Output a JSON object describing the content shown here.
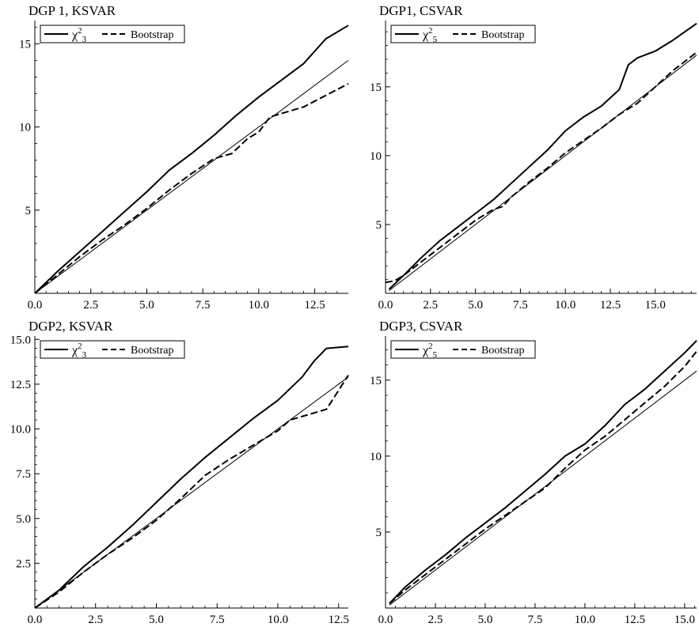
{
  "chart_data": [
    {
      "type": "line",
      "title": "DGP 1, KSVAR",
      "xlim": [
        0,
        14
      ],
      "ylim": [
        0,
        16.3
      ],
      "xticks": [
        "0.0",
        "2.5",
        "5.0",
        "7.5",
        "10.0",
        "12.5"
      ],
      "xtick_values": [
        0,
        2.5,
        5,
        7.5,
        10,
        12.5
      ],
      "yticks": [
        "5",
        "10",
        "15"
      ],
      "ytick_values": [
        5,
        10,
        15
      ],
      "legend": {
        "chi_base": "χ",
        "chi_sup": "2",
        "chi_sub": "3",
        "bootstrap": "Bootstrap",
        "position": "top-left"
      },
      "series": [
        {
          "key": "chi2",
          "style": "solid",
          "x": [
            0,
            1,
            2,
            3,
            4,
            5,
            6,
            7,
            8,
            9,
            10,
            11,
            12,
            13,
            14
          ],
          "y": [
            0,
            1.3,
            2.5,
            3.7,
            4.9,
            6.1,
            7.4,
            8.4,
            9.5,
            10.7,
            11.8,
            12.8,
            13.8,
            15.3,
            16.1
          ]
        },
        {
          "key": "bootstrap",
          "style": "dashed",
          "x": [
            0,
            1,
            2,
            3,
            4,
            5,
            6,
            7,
            8,
            8.8,
            9.5,
            10,
            10.5,
            11,
            12,
            13,
            14
          ],
          "y": [
            0,
            1.1,
            2.2,
            3.2,
            4.1,
            5.1,
            6.2,
            7.2,
            8.1,
            8.4,
            9.3,
            9.7,
            10.6,
            10.8,
            11.2,
            11.9,
            12.6
          ]
        },
        {
          "key": "reference",
          "style": "thin",
          "x": [
            0,
            14
          ],
          "y": [
            0,
            14
          ]
        }
      ]
    },
    {
      "type": "line",
      "title": "DGP1, CSVAR",
      "xlim": [
        0,
        17.3
      ],
      "ylim": [
        0,
        19.7
      ],
      "xticks": [
        "0.0",
        "2.5",
        "5.0",
        "7.5",
        "10.0",
        "12.5",
        "15.0"
      ],
      "xtick_values": [
        0,
        2.5,
        5,
        7.5,
        10,
        12.5,
        15
      ],
      "yticks": [
        "5",
        "10",
        "15"
      ],
      "ytick_values": [
        5,
        10,
        15
      ],
      "legend": {
        "chi_base": "χ",
        "chi_sup": "2",
        "chi_sub": "5",
        "bootstrap": "Bootstrap",
        "position": "top-left"
      },
      "series": [
        {
          "key": "chi2",
          "style": "solid",
          "x": [
            0.2,
            1,
            2,
            3,
            4,
            5,
            6,
            7,
            8,
            9,
            10,
            11,
            12,
            13,
            13.5,
            14,
            15,
            16,
            17.3
          ],
          "y": [
            0.3,
            1.3,
            2.6,
            3.8,
            4.8,
            5.8,
            6.8,
            8,
            9.2,
            10.4,
            11.8,
            12.8,
            13.6,
            14.8,
            16.6,
            17.1,
            17.6,
            18.4,
            19.6
          ]
        },
        {
          "key": "bootstrap",
          "style": "dashed",
          "x": [
            0,
            0.5,
            1,
            2,
            3,
            4,
            5,
            6,
            6.5,
            7,
            8,
            9,
            10,
            11,
            12,
            13,
            14,
            15,
            16,
            17.3
          ],
          "y": [
            0.8,
            0.9,
            1.3,
            2.3,
            3.3,
            4.3,
            5.3,
            6.1,
            6.3,
            7,
            8.1,
            9.1,
            10.2,
            11.1,
            12,
            13,
            13.8,
            15,
            16.2,
            17.5
          ]
        },
        {
          "key": "reference",
          "style": "thin",
          "x": [
            0.2,
            17.3
          ],
          "y": [
            0.2,
            17.3
          ]
        }
      ]
    },
    {
      "type": "line",
      "title": "DGP2, KSVAR",
      "xlim": [
        0,
        12.9
      ],
      "ylim": [
        0,
        15.1
      ],
      "xticks": [
        "0.0",
        "2.5",
        "5.0",
        "7.5",
        "10.0",
        "12.5"
      ],
      "xtick_values": [
        0,
        2.5,
        5,
        7.5,
        10,
        12.5
      ],
      "yticks": [
        "2.5",
        "5.0",
        "7.5",
        "10.0",
        "12.5",
        "15.0"
      ],
      "ytick_values": [
        2.5,
        5,
        7.5,
        10,
        12.5,
        15
      ],
      "legend": {
        "chi_base": "χ",
        "chi_sup": "2",
        "chi_sub": "3",
        "bootstrap": "Bootstrap",
        "position": "top-left"
      },
      "series": [
        {
          "key": "chi2",
          "style": "solid",
          "x": [
            0,
            1,
            2,
            3,
            4,
            5,
            6,
            7,
            8,
            9,
            10,
            11,
            11.5,
            12,
            12.9
          ],
          "y": [
            0,
            1,
            2.3,
            3.4,
            4.6,
            5.9,
            7.2,
            8.4,
            9.5,
            10.6,
            11.6,
            12.9,
            13.8,
            14.5,
            14.6
          ]
        },
        {
          "key": "bootstrap",
          "style": "dashed",
          "x": [
            0,
            1,
            2,
            3,
            4,
            5,
            6,
            7,
            8,
            9,
            10,
            10.5,
            11,
            12,
            12.9
          ],
          "y": [
            0,
            0.9,
            2,
            3,
            3.9,
            4.9,
            6.1,
            7.4,
            8.3,
            9.1,
            9.9,
            10.5,
            10.7,
            11.1,
            13
          ]
        },
        {
          "key": "reference",
          "style": "thin",
          "x": [
            0,
            12.9
          ],
          "y": [
            0,
            12.9
          ]
        }
      ]
    },
    {
      "type": "line",
      "title": "DGP3, CSVAR",
      "xlim": [
        0,
        15.6
      ],
      "ylim": [
        0,
        17.8
      ],
      "xticks": [
        "0.0",
        "2.5",
        "5.0",
        "7.5",
        "10.0",
        "12.5",
        "15.0"
      ],
      "xtick_values": [
        0,
        2.5,
        5,
        7.5,
        10,
        12.5,
        15
      ],
      "yticks": [
        "5",
        "10",
        "15"
      ],
      "ytick_values": [
        5,
        10,
        15
      ],
      "legend": {
        "chi_base": "χ",
        "chi_sup": "2",
        "chi_sub": "5",
        "bootstrap": "Bootstrap",
        "position": "top-left"
      },
      "series": [
        {
          "key": "chi2",
          "style": "solid",
          "x": [
            0.2,
            1,
            2,
            3,
            4,
            5,
            6,
            7,
            8,
            9,
            10,
            11,
            12,
            13,
            14,
            15,
            15.6
          ],
          "y": [
            0.3,
            1.4,
            2.5,
            3.5,
            4.6,
            5.6,
            6.6,
            7.7,
            8.8,
            10,
            10.8,
            12,
            13.4,
            14.4,
            15.6,
            16.8,
            17.6
          ]
        },
        {
          "key": "bootstrap",
          "style": "dashed",
          "x": [
            0.2,
            1,
            2,
            3,
            4,
            5,
            6,
            7,
            8,
            9,
            10,
            11,
            12,
            13,
            14,
            15,
            15.6
          ],
          "y": [
            0.3,
            1.2,
            2.2,
            3.2,
            4.2,
            5.2,
            6.1,
            7,
            7.9,
            9.2,
            10.4,
            11.3,
            12.4,
            13.5,
            14.6,
            15.9,
            16.9
          ]
        },
        {
          "key": "reference",
          "style": "thin",
          "x": [
            0.2,
            15.6
          ],
          "y": [
            0.2,
            15.6
          ]
        }
      ]
    }
  ]
}
